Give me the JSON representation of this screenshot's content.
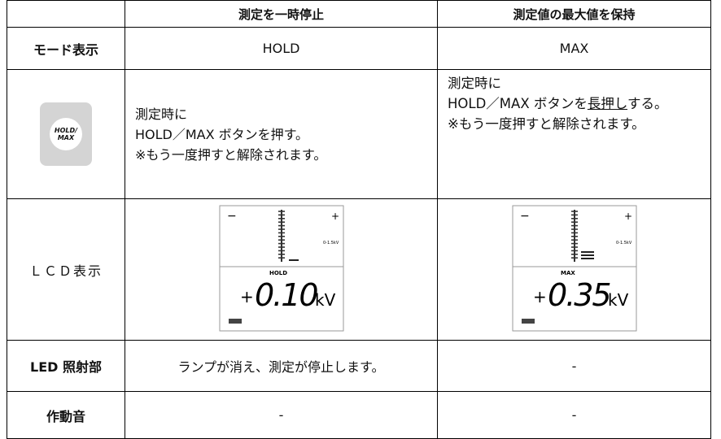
{
  "table": {
    "header": [
      "測定を一時停止",
      "測定値の最大値を保持"
    ],
    "mode": {
      "label": "モード表示",
      "values": [
        "HOLD",
        "MAX"
      ]
    },
    "button": {
      "icon": [
        "HOLD/",
        "MAX"
      ],
      "hold": [
        "測定時に",
        "HOLD／MAX ボタンを押す。",
        "※もう一度押すと解除されます。"
      ],
      "max": {
        "line1": "測定時に",
        "pre": "HOLD／MAX ボタンを",
        "underline": "長押し",
        "post": "する。",
        "line3": "※もう一度押すと解除されます。"
      }
    },
    "lcd": {
      "label": "ＬＣＤ表示",
      "displays": [
        {
          "minus": "−",
          "plus": "+",
          "range": "0-1.5kV",
          "indicator": "HOLD",
          "sign": "+",
          "reading": "0.10",
          "unit": "kV"
        },
        {
          "minus": "−",
          "plus": "+",
          "range": "0-1.5kV",
          "indicator": "MAX",
          "sign": "+",
          "reading": "0.35",
          "unit": "kV"
        }
      ]
    },
    "led": {
      "label": "LED 照射部",
      "values": [
        "ランプが消え、測定が停止します。",
        "-"
      ]
    },
    "sound": {
      "label": "作動音",
      "values": [
        "-",
        "-"
      ]
    }
  }
}
